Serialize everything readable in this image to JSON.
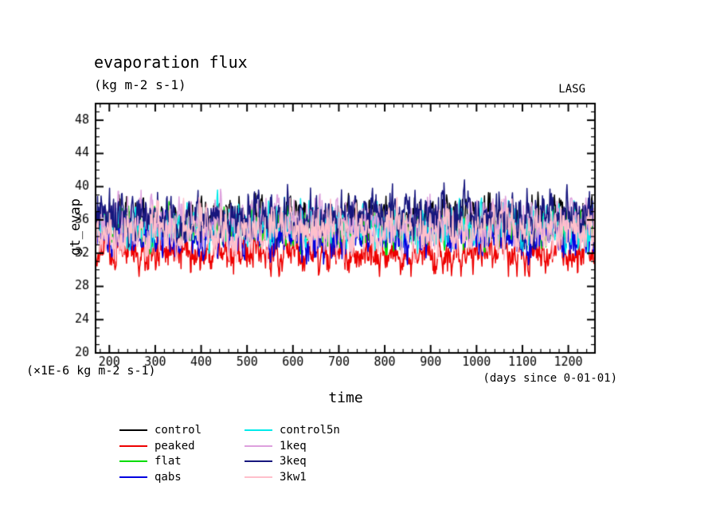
{
  "chart_data": {
    "type": "line",
    "title": "evaporation flux",
    "units_label": "(kg m-2 s-1)",
    "watermark": "LASG",
    "xlabel": "time",
    "ylabel": "gt_evap",
    "left_annotation": "(×1E-6 kg m-2 s-1)",
    "right_annotation": "(days since 0-01-01)",
    "xlim": [
      170,
      1258
    ],
    "ylim": [
      20,
      50
    ],
    "x_major_ticks": [
      200,
      300,
      400,
      500,
      600,
      700,
      800,
      900,
      1000,
      1100,
      1200
    ],
    "x_minor_step": 20,
    "y_major_ticks": [
      20,
      24,
      28,
      32,
      36,
      40,
      44,
      48
    ],
    "y_minor_step": 1,
    "n_points": 1000,
    "axis_color": "#000000",
    "series": [
      {
        "name": "control",
        "color": "#000000",
        "mean": 36.1,
        "std": 1.25,
        "min": 32.4,
        "max": 40.6,
        "seed": 101
      },
      {
        "name": "peaked",
        "color": "#ee0000",
        "mean": 32.1,
        "std": 1.15,
        "min": 29.2,
        "max": 34.8,
        "seed": 202
      },
      {
        "name": "flat",
        "color": "#00dd00",
        "mean": 34.9,
        "std": 1.1,
        "min": 31.8,
        "max": 38.2,
        "seed": 303
      },
      {
        "name": "qabs",
        "color": "#0000e0",
        "mean": 33.9,
        "std": 1.2,
        "min": 30.6,
        "max": 37.4,
        "seed": 404
      },
      {
        "name": "control5n",
        "color": "#00eaea",
        "mean": 35.2,
        "std": 1.25,
        "min": 31.8,
        "max": 39.6,
        "seed": 505
      },
      {
        "name": "1keq",
        "color": "#dda0dd",
        "mean": 36.0,
        "std": 1.35,
        "min": 32.2,
        "max": 40.2,
        "seed": 606
      },
      {
        "name": "3keq",
        "color": "#16167d",
        "mean": 36.5,
        "std": 1.45,
        "min": 32.5,
        "max": 40.9,
        "seed": 707
      },
      {
        "name": "3kw1",
        "color": "#ffc0cb",
        "mean": 34.7,
        "std": 1.5,
        "min": 30.9,
        "max": 38.7,
        "seed": 808
      }
    ]
  }
}
